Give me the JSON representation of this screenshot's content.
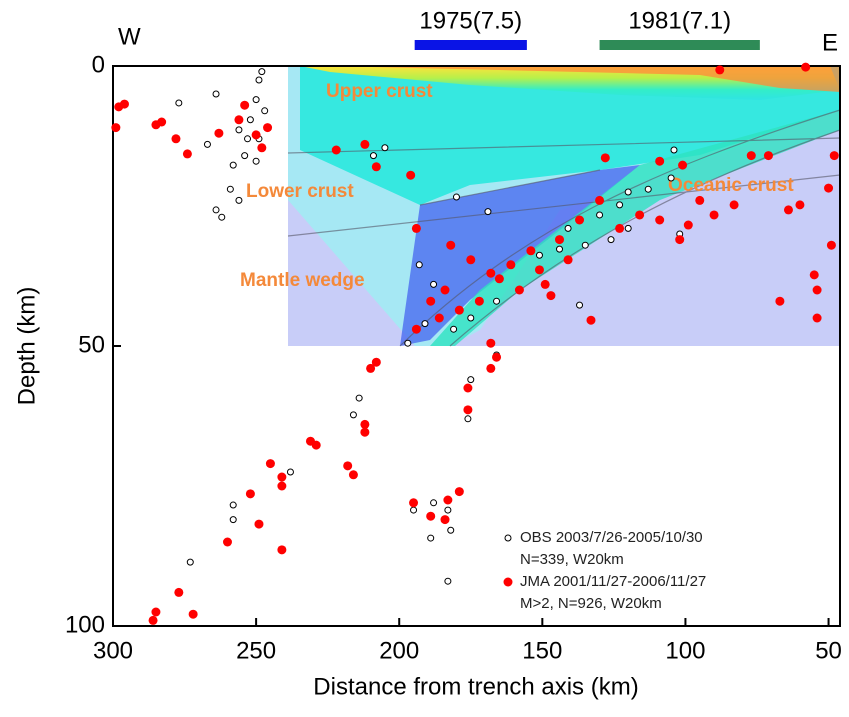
{
  "chart_data": {
    "type": "scatter",
    "xlabel": "Distance from trench axis (km)",
    "ylabel": "Depth  (km)",
    "xlim": [
      300,
      46
    ],
    "ylim": [
      0,
      100
    ],
    "xticks": [
      300,
      250,
      200,
      150,
      100,
      50
    ],
    "yticks": [
      0,
      50,
      100
    ],
    "y_inverted": true,
    "annotations": {
      "west": "W",
      "east": "E",
      "upper_crust": "Upper crust",
      "lower_crust": "Lower crust",
      "mantle_wedge": "Mantle wedge",
      "oceanic_crust": "Oceanic crust"
    },
    "events": [
      {
        "label": "1975(7.5)",
        "x": [
          194.6,
          155.4
        ],
        "color": "#0a14e6"
      },
      {
        "label": "1981(7.1)",
        "x": [
          130,
          74
        ],
        "color": "#2e8b57"
      }
    ],
    "series": [
      {
        "name": "OBS 2003/7/26-2005/10/30",
        "note": "N=339, W20km",
        "color": "#ffffff",
        "x": [
          248,
          249,
          250,
          252,
          253,
          254,
          258,
          259,
          256,
          264,
          262,
          267,
          277,
          264,
          247,
          256,
          250,
          249,
          180,
          169,
          193,
          188,
          197,
          191,
          181,
          175,
          166,
          158,
          151,
          141,
          135,
          130,
          123,
          120,
          113,
          104,
          105,
          102,
          137,
          209,
          205,
          166,
          175,
          176,
          216,
          214,
          238,
          258,
          258,
          273,
          195,
          188,
          183,
          182,
          189,
          183,
          144,
          126,
          120
        ],
        "values": [
          1,
          2.5,
          6,
          9.6,
          13,
          16,
          17.7,
          22,
          24,
          25.7,
          27,
          14,
          6.6,
          5,
          8,
          11.4,
          17,
          13,
          23.4,
          26,
          35.5,
          39,
          49.5,
          46,
          47,
          45,
          42,
          40,
          33.8,
          29,
          32,
          26.6,
          24.8,
          22.5,
          22,
          15,
          20,
          30,
          42.7,
          16,
          14.6,
          51.6,
          56,
          63,
          62.3,
          59.3,
          72.5,
          78.4,
          81,
          88.6,
          79.3,
          78,
          79.3,
          82.9,
          84.3,
          92,
          32.7,
          31,
          29
        ]
      },
      {
        "name": "JMA 2001/11/27-2006/11/27",
        "note": "M>2, N=926, W20km",
        "color": "#ff0000",
        "x": [
          298,
          296,
          299,
          285,
          283,
          274,
          278,
          263,
          254,
          256,
          246,
          248,
          250,
          222,
          212,
          208,
          196,
          194,
          182,
          175,
          168,
          161,
          154,
          144,
          137,
          130,
          128,
          147,
          158,
          184,
          189,
          194,
          186,
          179,
          172,
          165,
          151,
          141,
          123,
          116,
          109,
          101,
          109,
          95,
          102,
          99,
          90,
          83,
          77,
          71,
          67,
          88,
          58,
          60,
          49,
          55,
          54,
          54,
          48,
          50,
          64,
          133,
          149,
          208,
          210,
          168,
          166,
          168,
          176,
          176,
          212,
          212,
          231,
          229,
          245,
          241,
          241,
          252,
          249,
          241,
          260,
          218,
          216,
          195,
          189,
          183,
          179,
          184,
          277,
          272,
          285,
          286
        ],
        "values": [
          7.3,
          6.8,
          11,
          10.5,
          10,
          15.7,
          13,
          12,
          7,
          9.6,
          11,
          14.6,
          12.3,
          15,
          14,
          18,
          19.5,
          29,
          32,
          34.6,
          37,
          35.5,
          33,
          31,
          27.5,
          24,
          16.4,
          41,
          40,
          40,
          42,
          47,
          45,
          43.6,
          42,
          38,
          36.4,
          34.6,
          29,
          26.6,
          27.5,
          17.7,
          17,
          24,
          31,
          28.4,
          26.6,
          24.8,
          16,
          16,
          42,
          0.7,
          0.2,
          24.8,
          32,
          37.3,
          40,
          45,
          16,
          21.8,
          25.7,
          45.4,
          39,
          52.9,
          54,
          49.5,
          52,
          54,
          57.5,
          61.4,
          64,
          65.4,
          67,
          67.7,
          71,
          73.4,
          75,
          76.4,
          81.8,
          86.4,
          85,
          71.4,
          73,
          78,
          80.4,
          77.5,
          76,
          81,
          94,
          97.9,
          97.5,
          99
        ]
      }
    ]
  }
}
